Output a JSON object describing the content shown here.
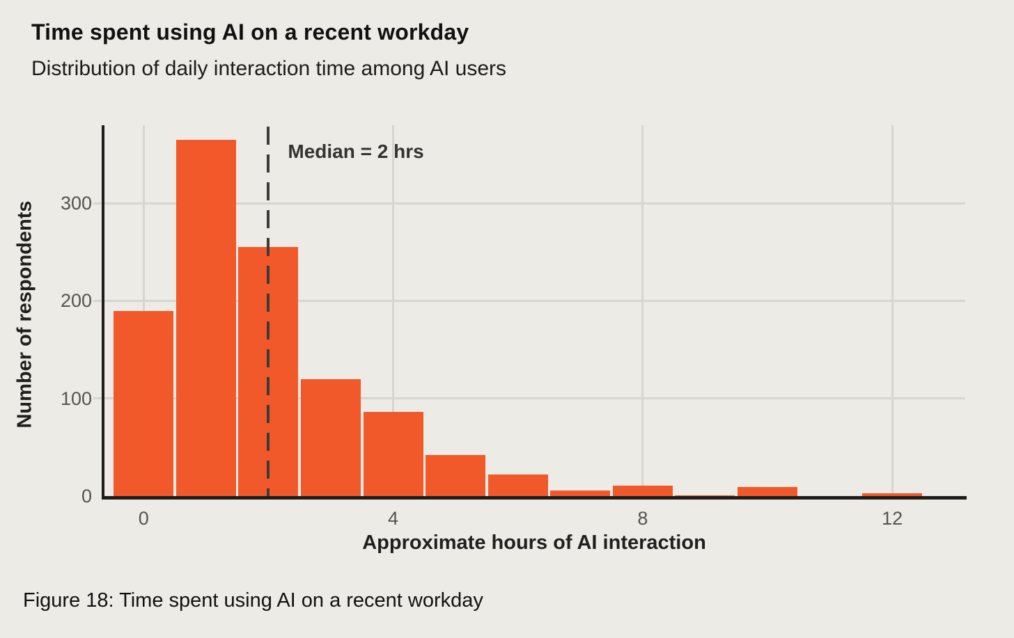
{
  "header": {
    "title": "Time spent using AI on a recent workday",
    "subtitle": "Distribution of daily interaction time among AI users"
  },
  "caption": "Figure 18: Time spent using AI on a recent workday",
  "colors": {
    "background": "#EDEBE6",
    "bar": "#F1582A",
    "axis": "#1D1D1B",
    "gridline": "#D7D5D0",
    "median_line": "#3B3B39",
    "tick_text": "#55544F",
    "label_text": "#1F1F1D"
  },
  "chart_data": {
    "type": "bar",
    "title": "Time spent using AI on a recent workday",
    "subtitle": "Distribution of daily interaction time among AI users",
    "xlabel": "Approximate hours of AI interaction",
    "ylabel": "Number of respondents",
    "bin_centers": [
      0,
      1,
      2,
      3,
      4,
      5,
      6,
      7,
      8,
      9,
      10,
      11,
      12
    ],
    "values": [
      190,
      365,
      255,
      120,
      86,
      42,
      22,
      6,
      11,
      1,
      9,
      0,
      3
    ],
    "xticks": [
      0,
      4,
      8,
      12
    ],
    "yticks": [
      0,
      100,
      200,
      300
    ],
    "xlim": [
      -0.65,
      13.17
    ],
    "ylim": [
      0,
      380
    ],
    "grid": true,
    "legend": null,
    "median": {
      "value": 2,
      "label": "Median = 2 hrs"
    }
  }
}
